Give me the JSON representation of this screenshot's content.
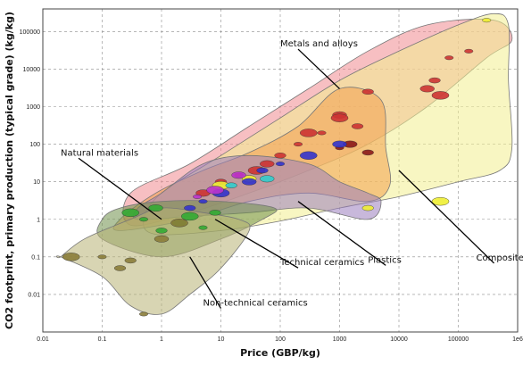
{
  "chart_data": {
    "type": "scatter",
    "chart_kind": "Ashby bubble chart (log-log)",
    "title": "",
    "xlabel": "Price (GBP/kg)",
    "ylabel": "CO2 footprint, primary production (typical grade) (kg/kg)",
    "x_scale": "log",
    "y_scale": "log",
    "xlim": [
      0.01,
      1000000
    ],
    "ylim": [
      0.001,
      400000
    ],
    "grid": true,
    "x_ticks": [
      "0.01",
      "0.1",
      "1",
      "10",
      "100",
      "1000",
      "10000",
      "100000",
      "1e6"
    ],
    "y_ticks": [
      "0.01",
      "0.1",
      "1",
      "10",
      "100",
      "1000",
      "10000",
      "100000"
    ],
    "families": [
      {
        "name": "Metals and alloys",
        "color": "#f08a90",
        "envelope": [
          [
            0.3,
            0.7
          ],
          [
            3,
            1.5
          ],
          [
            30,
            5
          ],
          [
            300,
            20
          ],
          [
            3000,
            100
          ],
          [
            30000,
            1000
          ],
          [
            300000,
            20000
          ],
          [
            800000,
            60000
          ],
          [
            400000,
            200000
          ],
          [
            30000,
            150000
          ],
          [
            3000,
            30000
          ],
          [
            300,
            3000
          ],
          [
            30,
            300
          ],
          [
            3,
            30
          ],
          [
            0.3,
            5
          ]
        ],
        "label_at": [
          100,
          40000
        ],
        "pointer_to": [
          1000,
          3000
        ]
      },
      {
        "name": "Composites",
        "color": "#f2ee90",
        "envelope": [
          [
            0.8,
            0.4
          ],
          [
            10,
            0.5
          ],
          [
            100,
            0.9
          ],
          [
            1000,
            2
          ],
          [
            10000,
            4
          ],
          [
            100000,
            10
          ],
          [
            500000,
            20
          ],
          [
            800000,
            80
          ],
          [
            700000,
            5000
          ],
          [
            700000,
            150000
          ],
          [
            400000,
            300000
          ],
          [
            100000,
            150000
          ],
          [
            10000,
            30000
          ],
          [
            1000,
            5000
          ],
          [
            100,
            500
          ],
          [
            10,
            50
          ],
          [
            1,
            5
          ],
          [
            0.5,
            1
          ]
        ],
        "label_at": [
          200000,
          0.08
        ],
        "pointer_to": [
          10000,
          20
        ]
      },
      {
        "name": "Technical ceramics",
        "color": "#f2a04c",
        "envelope": [
          [
            0.2,
            0.5
          ],
          [
            3,
            1
          ],
          [
            30,
            3
          ],
          [
            300,
            5
          ],
          [
            3000,
            3
          ],
          [
            7000,
            8
          ],
          [
            6000,
            80
          ],
          [
            5000,
            1500
          ],
          [
            1000,
            3000
          ],
          [
            200,
            300
          ],
          [
            30,
            60
          ],
          [
            5,
            20
          ],
          [
            0.8,
            5
          ],
          [
            0.2,
            1
          ]
        ],
        "label_at": [
          100,
          0.06
        ],
        "pointer_to": [
          8,
          1
        ]
      },
      {
        "name": "Plastics",
        "color": "#9a7dbd",
        "envelope": [
          [
            0.4,
            1
          ],
          [
            3,
            1.2
          ],
          [
            30,
            1.5
          ],
          [
            300,
            2
          ],
          [
            3000,
            1
          ],
          [
            5000,
            3
          ],
          [
            3000,
            5
          ],
          [
            1000,
            10
          ],
          [
            300,
            30
          ],
          [
            30,
            50
          ],
          [
            5,
            30
          ],
          [
            1,
            5
          ],
          [
            0.4,
            2
          ]
        ],
        "label_at": [
          3000,
          0.07
        ],
        "pointer_to": [
          200,
          3
        ]
      },
      {
        "name": "Natural materials",
        "color": "#6f8f4a",
        "envelope": [
          [
            0.1,
            0.3
          ],
          [
            1,
            0.1
          ],
          [
            10,
            0.3
          ],
          [
            50,
            1
          ],
          [
            80,
            2
          ],
          [
            10,
            3
          ],
          [
            1,
            3
          ],
          [
            0.2,
            2
          ],
          [
            0.1,
            1
          ]
        ],
        "label_at": [
          0.02,
          50
        ],
        "pointer_to": [
          1,
          1
        ]
      },
      {
        "name": "Non-technical ceramics",
        "color": "#b8b374",
        "envelope": [
          [
            0.02,
            0.1
          ],
          [
            0.1,
            0.03
          ],
          [
            0.3,
            0.005
          ],
          [
            1,
            0.003
          ],
          [
            3,
            0.01
          ],
          [
            10,
            0.05
          ],
          [
            30,
            0.5
          ],
          [
            20,
            1
          ],
          [
            5,
            1.5
          ],
          [
            1,
            2
          ],
          [
            0.3,
            1
          ],
          [
            0.05,
            0.3
          ],
          [
            0.02,
            0.1
          ]
        ],
        "label_at": [
          5,
          0.005
        ],
        "pointer_to": [
          3,
          0.1
        ]
      }
    ],
    "bubbles": [
      {
        "series": "Metals and alloys",
        "x": 150000,
        "y": 30000,
        "color": "#cc3333"
      },
      {
        "series": "Metals and alloys",
        "x": 40000,
        "y": 5000,
        "color": "#cc3333"
      },
      {
        "series": "Metals and alloys",
        "x": 30000,
        "y": 3000,
        "color": "#cc3333"
      },
      {
        "series": "Metals and alloys",
        "x": 50000,
        "y": 2000,
        "color": "#cc3333"
      },
      {
        "series": "Metals and alloys",
        "x": 70000,
        "y": 20000,
        "color": "#cc3333"
      },
      {
        "series": "Metals and alloys",
        "x": 3000,
        "y": 2500,
        "color": "#cc3333"
      },
      {
        "series": "Metals and alloys",
        "x": 1000,
        "y": 600,
        "color": "#cc3333"
      },
      {
        "series": "Metals and alloys",
        "x": 300,
        "y": 200,
        "color": "#cc3333"
      },
      {
        "series": "Metals and alloys",
        "x": 200,
        "y": 100,
        "color": "#cc3333"
      },
      {
        "series": "Metals and alloys",
        "x": 100,
        "y": 50,
        "color": "#cc3333"
      },
      {
        "series": "Metals and alloys",
        "x": 60,
        "y": 30,
        "color": "#cc3333"
      },
      {
        "series": "Metals and alloys",
        "x": 40,
        "y": 20,
        "color": "#cc3333"
      },
      {
        "series": "Metals and alloys",
        "x": 20,
        "y": 15,
        "color": "#cc3333"
      },
      {
        "series": "Metals and alloys",
        "x": 10,
        "y": 10,
        "color": "#cc3333"
      },
      {
        "series": "Metals and alloys",
        "x": 5,
        "y": 5,
        "color": "#cc3333"
      },
      {
        "series": "Composites",
        "x": 50000,
        "y": 3,
        "color": "#eeee33"
      },
      {
        "series": "Composites",
        "x": 300000,
        "y": 200000,
        "color": "#eeee33"
      },
      {
        "series": "Composites",
        "x": 3000,
        "y": 2,
        "color": "#eeee33"
      },
      {
        "series": "Composites",
        "x": 30,
        "y": 12,
        "color": "#eeee33"
      },
      {
        "series": "Composites",
        "x": 10,
        "y": 8,
        "color": "#eeee33"
      },
      {
        "series": "Composites",
        "x": 1000,
        "y": 80,
        "color": "#8b1a1a"
      },
      {
        "series": "Composites",
        "x": 3000,
        "y": 60,
        "color": "#8b1a1a"
      },
      {
        "series": "Composites",
        "x": 1500,
        "y": 100,
        "color": "#8b1a1a"
      },
      {
        "series": "Technical ceramics",
        "x": 1000,
        "y": 500,
        "color": "#cc3333"
      },
      {
        "series": "Technical ceramics",
        "x": 500,
        "y": 200,
        "color": "#cc3333"
      },
      {
        "series": "Technical ceramics",
        "x": 2000,
        "y": 300,
        "color": "#cc3333"
      },
      {
        "series": "Plastics",
        "x": 1000,
        "y": 100,
        "color": "#3333cc"
      },
      {
        "series": "Plastics",
        "x": 300,
        "y": 50,
        "color": "#3333cc"
      },
      {
        "series": "Plastics",
        "x": 100,
        "y": 30,
        "color": "#3333cc"
      },
      {
        "series": "Plastics",
        "x": 50,
        "y": 20,
        "color": "#3333cc"
      },
      {
        "series": "Plastics",
        "x": 30,
        "y": 10,
        "color": "#3333cc"
      },
      {
        "series": "Plastics",
        "x": 10,
        "y": 5,
        "color": "#3333cc"
      },
      {
        "series": "Plastics",
        "x": 5,
        "y": 3,
        "color": "#3333cc"
      },
      {
        "series": "Plastics",
        "x": 3,
        "y": 2,
        "color": "#3333cc"
      },
      {
        "series": "Plastics",
        "x": 20,
        "y": 15,
        "color": "#bb33cc"
      },
      {
        "series": "Plastics",
        "x": 8,
        "y": 6,
        "color": "#bb33cc"
      },
      {
        "series": "Plastics",
        "x": 4,
        "y": 4,
        "color": "#bb33cc"
      },
      {
        "series": "Plastics",
        "x": 15,
        "y": 8,
        "color": "#33cccc"
      },
      {
        "series": "Plastics",
        "x": 60,
        "y": 12,
        "color": "#33cccc"
      },
      {
        "series": "Natural materials",
        "x": 0.3,
        "y": 1.5,
        "color": "#33aa33"
      },
      {
        "series": "Natural materials",
        "x": 0.5,
        "y": 1,
        "color": "#33aa33"
      },
      {
        "series": "Natural materials",
        "x": 1,
        "y": 0.5,
        "color": "#33aa33"
      },
      {
        "series": "Natural materials",
        "x": 2,
        "y": 0.8,
        "color": "#33aa33"
      },
      {
        "series": "Natural materials",
        "x": 3,
        "y": 1.2,
        "color": "#33aa33"
      },
      {
        "series": "Natural materials",
        "x": 5,
        "y": 0.6,
        "color": "#33aa33"
      },
      {
        "series": "Natural materials",
        "x": 8,
        "y": 1.5,
        "color": "#33aa33"
      },
      {
        "series": "Natural materials",
        "x": 0.8,
        "y": 2,
        "color": "#33aa33"
      },
      {
        "series": "Non-technical ceramics",
        "x": 0.03,
        "y": 0.1,
        "color": "#8b7d3a"
      },
      {
        "series": "Non-technical ceramics",
        "x": 0.1,
        "y": 0.1,
        "color": "#8b7d3a"
      },
      {
        "series": "Non-technical ceramics",
        "x": 0.3,
        "y": 0.08,
        "color": "#8b7d3a"
      },
      {
        "series": "Non-technical ceramics",
        "x": 1,
        "y": 0.3,
        "color": "#8b7d3a"
      },
      {
        "series": "Non-technical ceramics",
        "x": 2,
        "y": 0.8,
        "color": "#8b7d3a"
      },
      {
        "series": "Non-technical ceramics",
        "x": 0.5,
        "y": 0.003,
        "color": "#8b7d3a"
      },
      {
        "series": "Non-technical ceramics",
        "x": 0.2,
        "y": 0.05,
        "color": "#8b7d3a"
      }
    ]
  }
}
